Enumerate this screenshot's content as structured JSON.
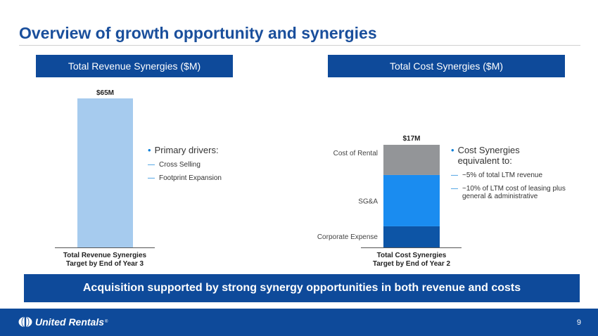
{
  "title": "Overview of growth opportunity and synergies",
  "revenue_header": "Total Revenue Synergies ($M)",
  "cost_header": "Total Cost Synergies ($M)",
  "left_bullets": {
    "main": "Primary drivers:",
    "subs": [
      "Cross Selling",
      "Footprint Expansion"
    ]
  },
  "right_bullets": {
    "main": "Cost Synergies equivalent to:",
    "subs": [
      "~5% of total LTM revenue",
      "~10% of LTM cost of leasing plus general & administrative"
    ]
  },
  "banner": "Acquisition supported by strong synergy opportunities in both revenue and costs",
  "footer": {
    "logo_text": "United Rentals",
    "logo_tm": "®",
    "page_number": "9"
  },
  "colors": {
    "brand_blue": "#0e4a9a",
    "revenue_bar": "#a6cbee",
    "corporate_expense": "#0d55a6",
    "sga": "#1a8cf0",
    "cost_of_rental": "#939598",
    "accent": "#0a7fd8"
  },
  "chart_data": [
    {
      "type": "bar",
      "title": "Total Revenue Synergies ($M)",
      "categories": [
        "Total Revenue Synergies Target by End of Year 3"
      ],
      "category_lines": [
        [
          "Total Revenue Synergies",
          "Target by End of Year 3"
        ]
      ],
      "values": [
        65
      ],
      "data_labels": [
        "$65M"
      ],
      "ylim": [
        0,
        65
      ]
    },
    {
      "type": "bar",
      "stacked": true,
      "title": "Total Cost Synergies ($M)",
      "categories": [
        "Total Cost Synergies Target by End of Year 2"
      ],
      "category_lines": [
        [
          "Total Cost Synergies",
          "Target by End of Year 2"
        ]
      ],
      "series": [
        {
          "name": "Corporate Expense",
          "values": [
            3.5
          ]
        },
        {
          "name": "SG&A",
          "values": [
            8.5
          ]
        },
        {
          "name": "Cost of Rental",
          "values": [
            5
          ]
        }
      ],
      "total_label": "$17M",
      "ylim": [
        0,
        17
      ]
    }
  ]
}
